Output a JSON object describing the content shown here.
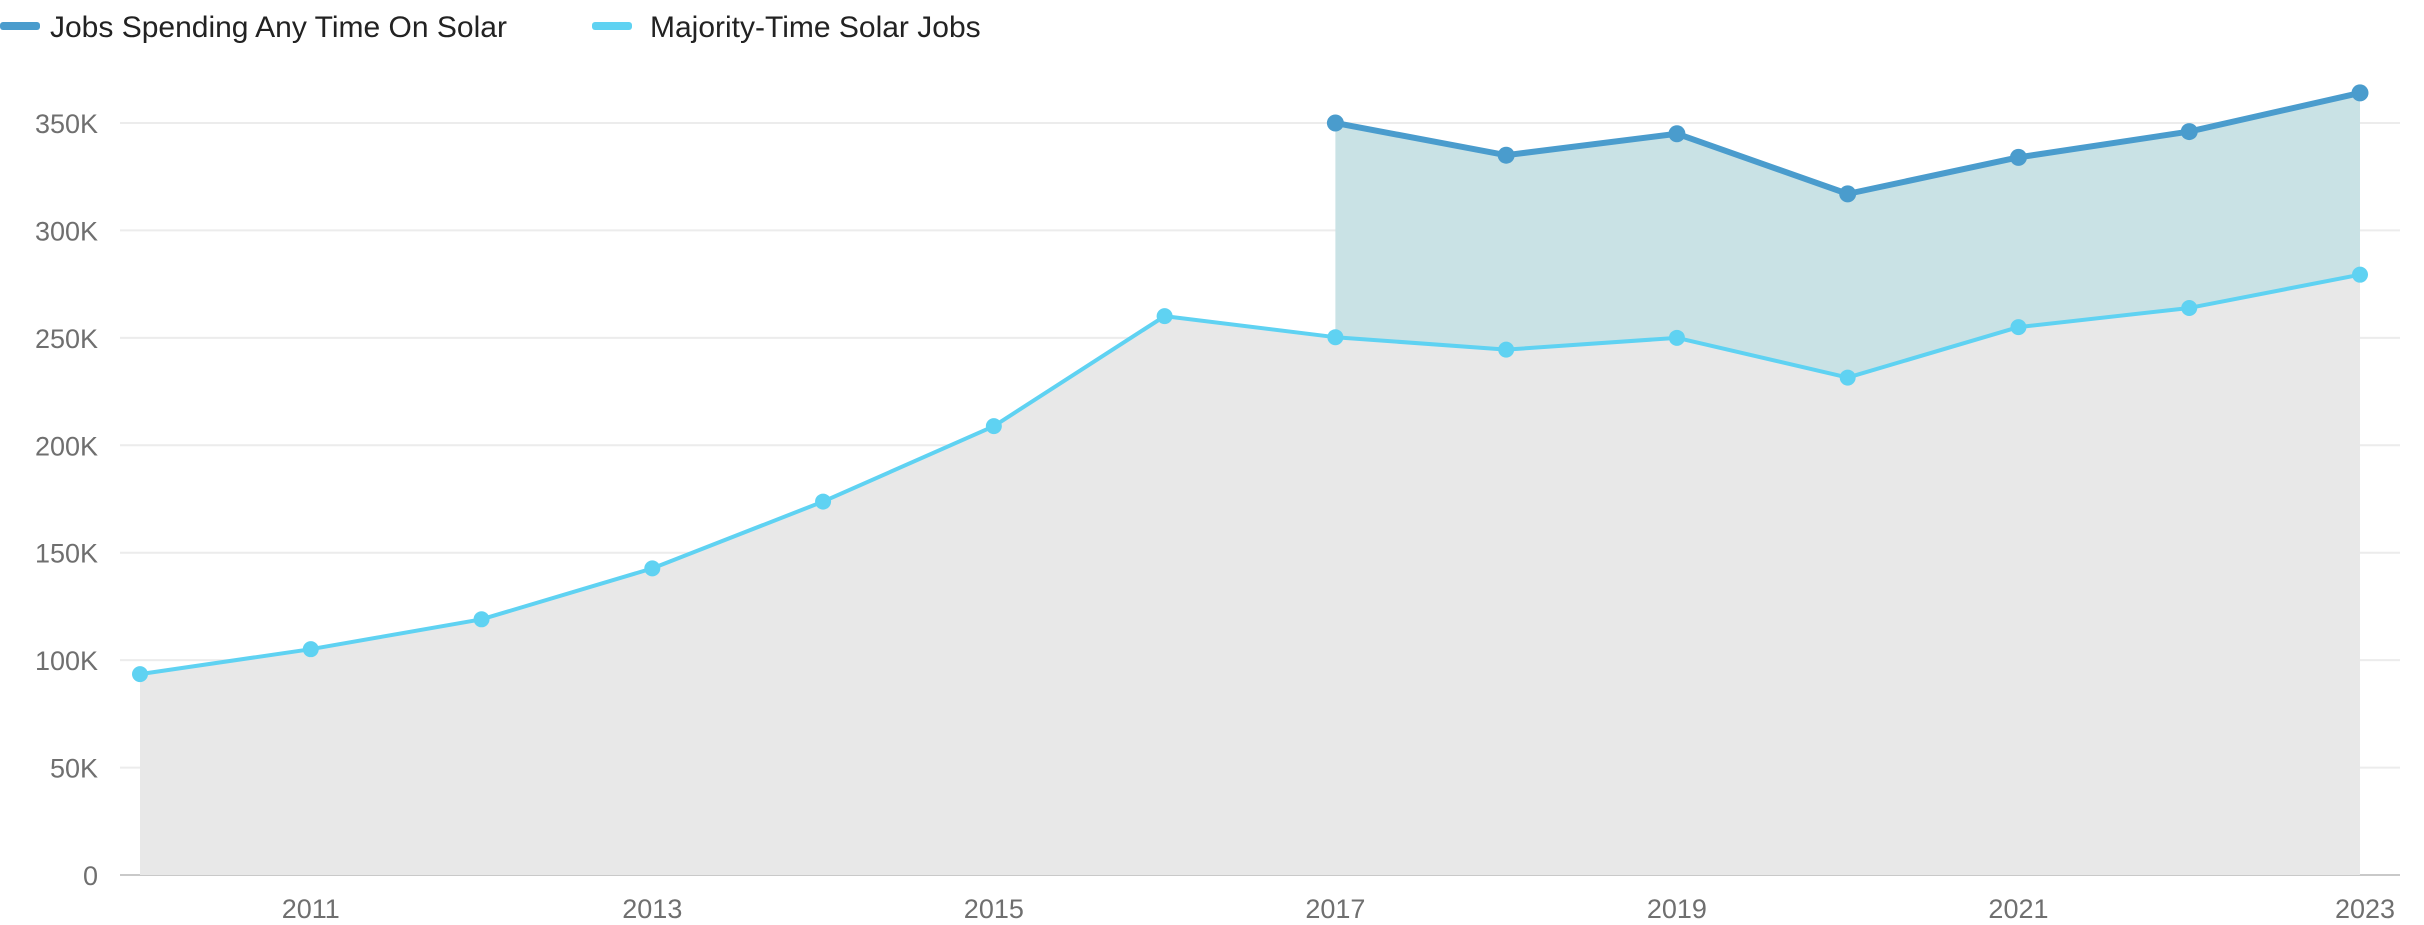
{
  "chart_data": {
    "type": "area",
    "title": "",
    "xlabel": "",
    "ylabel": "",
    "x": [
      2010,
      2011,
      2012,
      2013,
      2014,
      2015,
      2016,
      2017,
      2018,
      2019,
      2020,
      2021,
      2022,
      2023
    ],
    "x_ticks": [
      "2011",
      "2013",
      "2015",
      "2017",
      "2019",
      "2021",
      "2023"
    ],
    "xlim": [
      2010,
      2023
    ],
    "y_ticks": [
      "0",
      "50K",
      "100K",
      "150K",
      "200K",
      "250K",
      "300K",
      "350K"
    ],
    "ylim": [
      0,
      370000
    ],
    "grid": "horizontal",
    "legend_position": "top-left",
    "series": [
      {
        "name": "Jobs Spending Any Time On Solar",
        "color": "#4a9ccd",
        "fill_color": "#c9e2e5",
        "x": [
          2017,
          2018,
          2019,
          2020,
          2021,
          2022,
          2023
        ],
        "values": [
          350000,
          335000,
          345000,
          317000,
          334000,
          346000,
          364000
        ]
      },
      {
        "name": "Majority-Time Solar Jobs",
        "color": "#5fd2f2",
        "fill_color": "#e8e8e8",
        "x": [
          2010,
          2011,
          2012,
          2013,
          2014,
          2015,
          2016,
          2017,
          2018,
          2019,
          2020,
          2021,
          2022,
          2023
        ],
        "values": [
          93500,
          105100,
          119000,
          142700,
          173800,
          208900,
          260100,
          250300,
          244500,
          250000,
          231500,
          255000,
          263900,
          279400
        ]
      }
    ]
  }
}
